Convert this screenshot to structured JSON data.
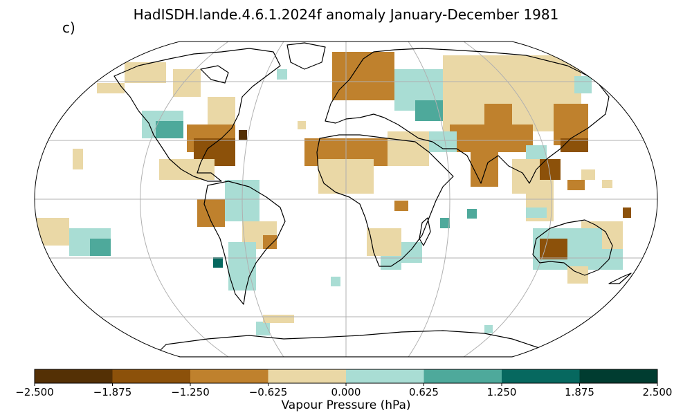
{
  "map": {
    "title": "HadISDH.lande.4.6.1.2024f anomaly January-December 1981",
    "panel_label": "c)",
    "projection": "Robinson",
    "variable": "Vapour Pressure",
    "colorbar": {
      "label": "Vapour Pressure (hPa)",
      "ticks": [
        "−2.500",
        "−1.875",
        "−1.250",
        "−0.625",
        "0.000",
        "0.625",
        "1.250",
        "1.875",
        "2.500"
      ],
      "colors": [
        "#543005",
        "#8c510a",
        "#bf812d",
        "#ead8a6",
        "#a9ddd4",
        "#4ea99b",
        "#06685f",
        "#003c30"
      ]
    },
    "gridlines": {
      "parallels_deg": [
        -60,
        -30,
        0,
        30,
        60
      ],
      "meridians_deg": [
        -120,
        -60,
        0,
        60,
        120
      ]
    }
  }
}
